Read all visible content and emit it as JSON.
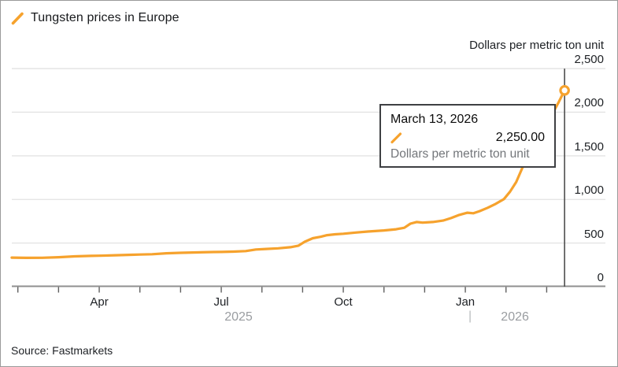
{
  "header": {
    "title": "Tungsten prices in Europe"
  },
  "y_axis": {
    "unit_label": "Dollars per metric ton unit",
    "tick_labels": [
      "2,500",
      "2,000",
      "1,500",
      "1,000",
      "500",
      "0"
    ],
    "tick_values": [
      2500,
      2000,
      1500,
      1000,
      500,
      0
    ]
  },
  "x_axis": {
    "month_labels": [
      {
        "text": "Apr",
        "month": 2
      },
      {
        "text": "Jul",
        "month": 5
      },
      {
        "text": "Oct",
        "month": 8
      },
      {
        "text": "Jan",
        "month": 11
      }
    ],
    "year_labels": [
      {
        "text": "2025",
        "from_month": -0.15,
        "to_month": 11
      },
      {
        "text": "2026",
        "from_month": 11,
        "to_month": 13.44
      }
    ],
    "year_divider": {
      "text": "|",
      "month": 11
    }
  },
  "tooltip": {
    "date": "March 13, 2026",
    "value": "2,250.00",
    "series_label": "Dollars per metric ton unit"
  },
  "source": "Source: Fastmarkets",
  "colors": {
    "accent_orange": "#F6A22D",
    "grid": "#E2E2E2",
    "axis_baseline": "#8F8F8F",
    "tick_mark": "#5F5F5F",
    "crosshair": "#4E4E4E",
    "text_dark": "#1D2024",
    "text_gray": "#9A9DA1"
  },
  "chart_data": {
    "type": "line",
    "title": "Tungsten prices in Europe",
    "ylabel": "Dollars per metric ton unit",
    "ylim": [
      0,
      2500
    ],
    "y_ticks": [
      0,
      500,
      1000,
      1500,
      2000,
      2500
    ],
    "grid": true,
    "x_unit": "months since 2025-02-01",
    "x_range_start": "late January 2025",
    "x_range_end": "March 13, 2026",
    "series": [
      {
        "name": "Tungsten price, dollars per metric ton unit",
        "x": [
          -0.15,
          0.2,
          0.6,
          1.0,
          1.4,
          1.8,
          2.0,
          2.4,
          2.8,
          3.0,
          3.3,
          3.65,
          4.0,
          4.4,
          4.8,
          5.0,
          5.3,
          5.6,
          5.85,
          6.1,
          6.4,
          6.7,
          6.9,
          7.05,
          7.25,
          7.45,
          7.6,
          7.8,
          8.0,
          8.3,
          8.6,
          9.0,
          9.3,
          9.5,
          9.65,
          9.8,
          9.95,
          10.2,
          10.45,
          10.65,
          10.85,
          11.05,
          11.2,
          11.35,
          11.55,
          11.75,
          11.95,
          12.1,
          12.25,
          12.4,
          12.6,
          12.8,
          13.0,
          13.15,
          13.3,
          13.44
        ],
        "y": [
          333,
          330,
          331,
          338,
          348,
          353,
          355,
          360,
          366,
          368,
          372,
          383,
          388,
          393,
          397,
          398,
          402,
          408,
          426,
          432,
          440,
          452,
          470,
          515,
          555,
          572,
          590,
          600,
          607,
          620,
          632,
          645,
          658,
          675,
          722,
          741,
          734,
          741,
          757,
          786,
          822,
          848,
          841,
          866,
          905,
          950,
          1005,
          1090,
          1200,
          1360,
          1560,
          1750,
          1870,
          1990,
          2120,
          2250
        ]
      }
    ],
    "highlight_point": {
      "date": "March 13, 2026",
      "x": 13.44,
      "value": 2250
    },
    "legend_position": "top-left"
  }
}
